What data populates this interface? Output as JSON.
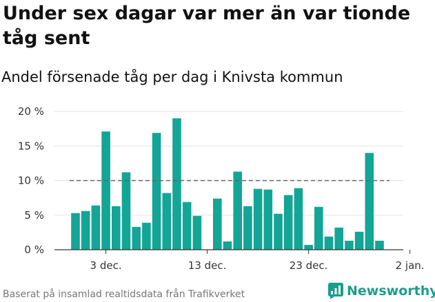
{
  "title": "Under sex dagar var mer än var tionde tåg sent",
  "subtitle": "Andel försenade tåg per dag i Knivsta kommun",
  "footer": "Baserat på insamlad realtidsdata från Trafikverket",
  "brand": "Newsworthy",
  "colors": {
    "bar": "#13a596",
    "reference_line": "#666666",
    "grid": "#e3e3e3",
    "axis": "#333333"
  },
  "chart_data": {
    "type": "bar",
    "title": "Under sex dagar var mer än var tionde tåg sent",
    "subtitle": "Andel försenade tåg per dag i Knivsta kommun",
    "dates": [
      "2019-11-30",
      "2019-12-01",
      "2019-12-02",
      "2019-12-03",
      "2019-12-04",
      "2019-12-05",
      "2019-12-06",
      "2019-12-07",
      "2019-12-08",
      "2019-12-09",
      "2019-12-10",
      "2019-12-11",
      "2019-12-12",
      "2019-12-13",
      "2019-12-14",
      "2019-12-15",
      "2019-12-16",
      "2019-12-17",
      "2019-12-18",
      "2019-12-19",
      "2019-12-20",
      "2019-12-21",
      "2019-12-22",
      "2019-12-23",
      "2019-12-24",
      "2019-12-25",
      "2019-12-26",
      "2019-12-27",
      "2019-12-28",
      "2019-12-29",
      "2019-12-30",
      "2019-12-31"
    ],
    "values": [
      5.3,
      5.6,
      6.4,
      17.1,
      6.3,
      11.2,
      3.3,
      3.9,
      16.9,
      8.2,
      19.0,
      6.9,
      4.9,
      0,
      7.4,
      1.2,
      11.3,
      6.3,
      8.8,
      8.7,
      5.2,
      7.9,
      8.9,
      0.7,
      6.2,
      1.9,
      3.2,
      1.3,
      2.6,
      14.0,
      1.3,
      0
    ],
    "x_ticks": [
      {
        "date": "2019-12-03",
        "label": "3 dec."
      },
      {
        "date": "2019-12-13",
        "label": "13 dec."
      },
      {
        "date": "2019-12-23",
        "label": "23 dec."
      },
      {
        "date": "2020-01-02",
        "label": "2 jan."
      }
    ],
    "y_ticks": [
      {
        "value": 0,
        "label": "0 %"
      },
      {
        "value": 5,
        "label": "5 %"
      },
      {
        "value": 10,
        "label": "10 %"
      },
      {
        "value": 15,
        "label": "15 %"
      },
      {
        "value": 20,
        "label": "20 %"
      }
    ],
    "ylim": [
      0,
      20
    ],
    "reference_line": {
      "value": 10,
      "style": "dashed"
    },
    "grid": true,
    "legend": false
  }
}
